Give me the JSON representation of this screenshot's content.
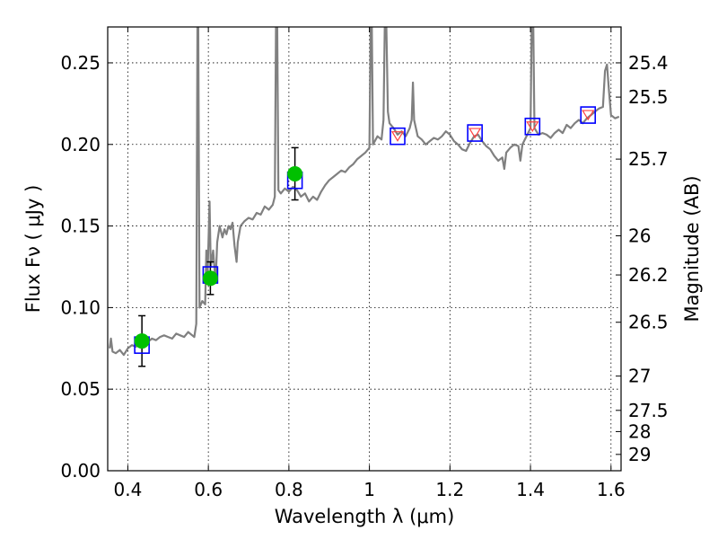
{
  "chart_data": {
    "type": "line",
    "xlabel": "Wavelength  λ (μm)",
    "ylabel": "Flux  Fν  ( μJy )",
    "ylabel_right": "Magnitude (AB)",
    "xlim": [
      0.35,
      1.625
    ],
    "ylim": [
      0.0,
      0.272
    ],
    "grid": true,
    "x_ticks": [
      0.4,
      0.6,
      0.8,
      1.0,
      1.2,
      1.4,
      1.6
    ],
    "x_tick_labels": [
      "0.4",
      "0.6",
      "0.8",
      "1",
      "1.2",
      "1.4",
      "1.6"
    ],
    "y_ticks": [
      0.0,
      0.05,
      0.1,
      0.15,
      0.2,
      0.25
    ],
    "y_tick_labels": [
      "0.00",
      "0.05",
      "0.10",
      "0.15",
      "0.20",
      "0.25"
    ],
    "right_axis": {
      "labels": [
        "25.4",
        "25.5",
        "25.7",
        "26",
        "26.2",
        "26.5",
        "27",
        "27.5",
        "28",
        "29"
      ],
      "flux_at_tick": [
        0.25,
        0.229,
        0.191,
        0.144,
        0.12,
        0.091,
        0.058,
        0.037,
        0.024,
        0.01
      ]
    },
    "series": [
      {
        "name": "model_spectrum",
        "kind": "line",
        "color": "#808080",
        "points": [
          [
            0.355,
            0.075
          ],
          [
            0.358,
            0.081
          ],
          [
            0.362,
            0.073
          ],
          [
            0.37,
            0.072
          ],
          [
            0.38,
            0.074
          ],
          [
            0.39,
            0.071
          ],
          [
            0.4,
            0.075
          ],
          [
            0.41,
            0.077
          ],
          [
            0.42,
            0.076
          ],
          [
            0.43,
            0.078
          ],
          [
            0.44,
            0.077
          ],
          [
            0.45,
            0.079
          ],
          [
            0.46,
            0.081
          ],
          [
            0.47,
            0.08
          ],
          [
            0.48,
            0.082
          ],
          [
            0.49,
            0.083
          ],
          [
            0.5,
            0.082
          ],
          [
            0.51,
            0.081
          ],
          [
            0.52,
            0.084
          ],
          [
            0.53,
            0.083
          ],
          [
            0.54,
            0.082
          ],
          [
            0.55,
            0.085
          ],
          [
            0.56,
            0.083
          ],
          [
            0.565,
            0.082
          ],
          [
            0.57,
            0.09
          ],
          [
            0.573,
            0.272
          ],
          [
            0.575,
            0.272
          ],
          [
            0.578,
            0.1
          ],
          [
            0.585,
            0.104
          ],
          [
            0.592,
            0.102
          ],
          [
            0.595,
            0.135
          ],
          [
            0.598,
            0.12
          ],
          [
            0.603,
            0.165
          ],
          [
            0.606,
            0.125
          ],
          [
            0.612,
            0.135
          ],
          [
            0.618,
            0.115
          ],
          [
            0.622,
            0.14
          ],
          [
            0.628,
            0.15
          ],
          [
            0.635,
            0.143
          ],
          [
            0.64,
            0.148
          ],
          [
            0.645,
            0.145
          ],
          [
            0.65,
            0.15
          ],
          [
            0.655,
            0.148
          ],
          [
            0.66,
            0.152
          ],
          [
            0.665,
            0.138
          ],
          [
            0.67,
            0.128
          ],
          [
            0.673,
            0.14
          ],
          [
            0.68,
            0.15
          ],
          [
            0.69,
            0.153
          ],
          [
            0.7,
            0.155
          ],
          [
            0.71,
            0.154
          ],
          [
            0.72,
            0.158
          ],
          [
            0.73,
            0.157
          ],
          [
            0.74,
            0.162
          ],
          [
            0.75,
            0.16
          ],
          [
            0.76,
            0.163
          ],
          [
            0.765,
            0.168
          ],
          [
            0.768,
            0.272
          ],
          [
            0.771,
            0.272
          ],
          [
            0.774,
            0.172
          ],
          [
            0.78,
            0.17
          ],
          [
            0.79,
            0.173
          ],
          [
            0.8,
            0.171
          ],
          [
            0.81,
            0.174
          ],
          [
            0.82,
            0.172
          ],
          [
            0.83,
            0.168
          ],
          [
            0.84,
            0.17
          ],
          [
            0.85,
            0.165
          ],
          [
            0.86,
            0.168
          ],
          [
            0.87,
            0.166
          ],
          [
            0.88,
            0.171
          ],
          [
            0.89,
            0.175
          ],
          [
            0.9,
            0.178
          ],
          [
            0.91,
            0.18
          ],
          [
            0.92,
            0.182
          ],
          [
            0.93,
            0.184
          ],
          [
            0.94,
            0.183
          ],
          [
            0.95,
            0.186
          ],
          [
            0.96,
            0.188
          ],
          [
            0.97,
            0.191
          ],
          [
            0.98,
            0.193
          ],
          [
            0.99,
            0.195
          ],
          [
            1.0,
            0.198
          ],
          [
            1.003,
            0.272
          ],
          [
            1.006,
            0.272
          ],
          [
            1.009,
            0.2
          ],
          [
            1.02,
            0.205
          ],
          [
            1.03,
            0.203
          ],
          [
            1.035,
            0.215
          ],
          [
            1.038,
            0.272
          ],
          [
            1.042,
            0.272
          ],
          [
            1.046,
            0.22
          ],
          [
            1.05,
            0.213
          ],
          [
            1.06,
            0.21
          ],
          [
            1.07,
            0.206
          ],
          [
            1.08,
            0.208
          ],
          [
            1.09,
            0.205
          ],
          [
            1.1,
            0.21
          ],
          [
            1.105,
            0.215
          ],
          [
            1.108,
            0.238
          ],
          [
            1.111,
            0.215
          ],
          [
            1.12,
            0.205
          ],
          [
            1.13,
            0.203
          ],
          [
            1.14,
            0.2
          ],
          [
            1.15,
            0.202
          ],
          [
            1.16,
            0.204
          ],
          [
            1.17,
            0.203
          ],
          [
            1.18,
            0.205
          ],
          [
            1.19,
            0.208
          ],
          [
            1.2,
            0.206
          ],
          [
            1.21,
            0.202
          ],
          [
            1.22,
            0.2
          ],
          [
            1.23,
            0.197
          ],
          [
            1.24,
            0.196
          ],
          [
            1.25,
            0.201
          ],
          [
            1.26,
            0.205
          ],
          [
            1.27,
            0.206
          ],
          [
            1.28,
            0.202
          ],
          [
            1.29,
            0.199
          ],
          [
            1.3,
            0.197
          ],
          [
            1.31,
            0.193
          ],
          [
            1.32,
            0.19
          ],
          [
            1.33,
            0.192
          ],
          [
            1.335,
            0.185
          ],
          [
            1.34,
            0.195
          ],
          [
            1.35,
            0.198
          ],
          [
            1.36,
            0.2
          ],
          [
            1.37,
            0.199
          ],
          [
            1.375,
            0.19
          ],
          [
            1.38,
            0.2
          ],
          [
            1.39,
            0.205
          ],
          [
            1.4,
            0.21
          ],
          [
            1.403,
            0.272
          ],
          [
            1.407,
            0.272
          ],
          [
            1.41,
            0.21
          ],
          [
            1.42,
            0.206
          ],
          [
            1.43,
            0.207
          ],
          [
            1.44,
            0.206
          ],
          [
            1.45,
            0.204
          ],
          [
            1.46,
            0.207
          ],
          [
            1.47,
            0.209
          ],
          [
            1.48,
            0.207
          ],
          [
            1.49,
            0.212
          ],
          [
            1.5,
            0.21
          ],
          [
            1.51,
            0.213
          ],
          [
            1.52,
            0.215
          ],
          [
            1.53,
            0.213
          ],
          [
            1.54,
            0.216
          ],
          [
            1.55,
            0.218
          ],
          [
            1.56,
            0.22
          ],
          [
            1.57,
            0.222
          ],
          [
            1.58,
            0.223
          ],
          [
            1.585,
            0.245
          ],
          [
            1.59,
            0.249
          ],
          [
            1.595,
            0.233
          ],
          [
            1.6,
            0.218
          ],
          [
            1.61,
            0.216
          ],
          [
            1.62,
            0.217
          ]
        ]
      },
      {
        "name": "observed_photometry",
        "kind": "errorbar",
        "color": "#00c000",
        "points": [
          {
            "x": 0.435,
            "y": 0.0795,
            "yerr": 0.0155
          },
          {
            "x": 0.605,
            "y": 0.118,
            "yerr": 0.01
          },
          {
            "x": 0.815,
            "y": 0.182,
            "yerr": 0.016
          }
        ]
      },
      {
        "name": "model_photometry",
        "kind": "square",
        "color": "#0000ff",
        "points": [
          [
            0.435,
            0.077
          ],
          [
            0.605,
            0.12
          ],
          [
            0.815,
            0.178
          ],
          [
            1.07,
            0.205
          ],
          [
            1.262,
            0.207
          ],
          [
            1.405,
            0.211
          ],
          [
            1.543,
            0.218
          ]
        ]
      },
      {
        "name": "upper_limits",
        "kind": "triangle-down",
        "color": "#ff4040",
        "points": [
          [
            1.07,
            0.205
          ],
          [
            1.262,
            0.207
          ],
          [
            1.405,
            0.211
          ],
          [
            1.543,
            0.218
          ]
        ]
      }
    ]
  }
}
